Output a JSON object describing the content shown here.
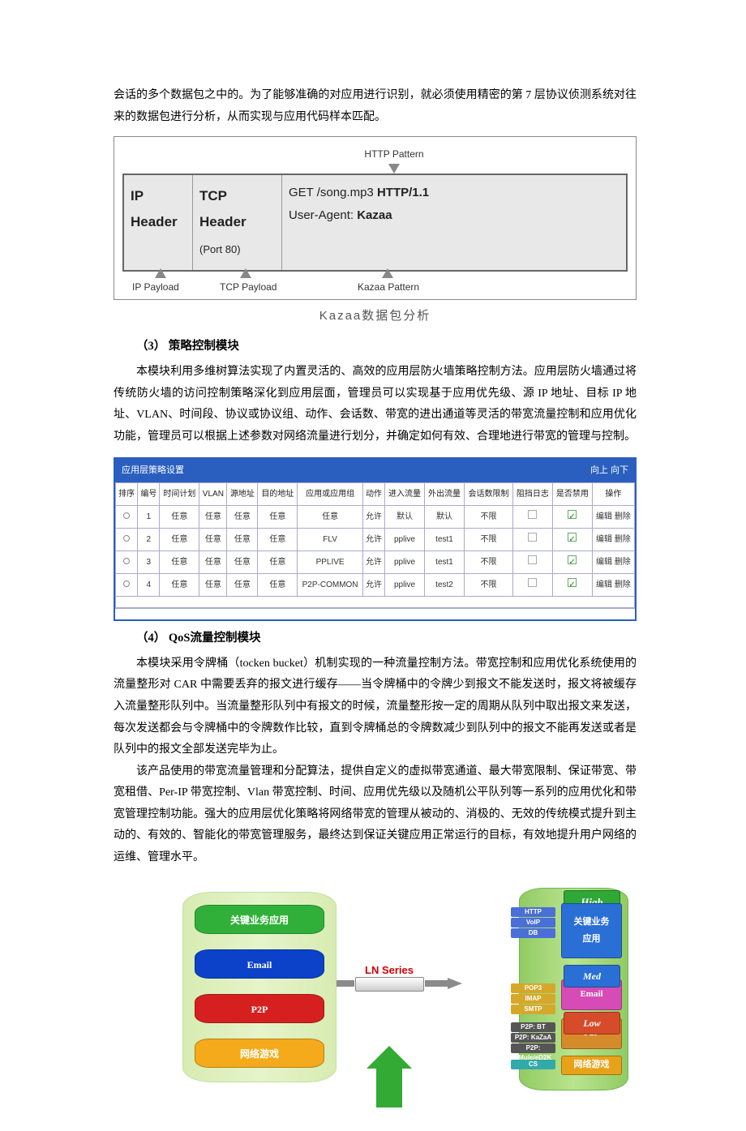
{
  "intro_para": "会话的多个数据包之中的。为了能够准确的对应用进行识别，就必须使用精密的第 7 层协议侦测系统对往来的数据包进行分析，从而实现与应用代码样本匹配。",
  "kazaa": {
    "top_label": "HTTP Pattern",
    "ip_header": "IP\nHeader",
    "tcp_header": "TCP\nHeader\n(Port 80)",
    "http_line1_a": "GET /song.mp3  ",
    "http_line1_b": "HTTP/1.1",
    "http_line2_a": "User-Agent: ",
    "http_line2_b": "Kazaa",
    "bl_ip": "IP Payload",
    "bl_tcp": "TCP Payload",
    "bl_kz": "Kazaa Pattern",
    "caption": "Kazaa数据包分析"
  },
  "sec3_head": "（3） 策略控制模块",
  "sec3_para": "本模块利用多维树算法实现了内置灵活的、高效的应用层防火墙策略控制方法。应用层防火墙通过将传统防火墙的访问控制策略深化到应用层面，管理员可以实现基于应用优先级、源 IP 地址、目标 IP 地址、VLAN、时间段、协议或协议组、动作、会话数、带宽的进出通道等灵活的带宽流量控制和应用优化功能，管理员可以根据上述参数对网络流量进行划分，并确定如何有效、合理地进行带宽的管理与控制。",
  "policy": {
    "title": "应用层策略设置",
    "nav": "向上  向下",
    "columns": [
      "排序",
      "编号",
      "时间计划",
      "VLAN",
      "源地址",
      "目的地址",
      "应用或应用组",
      "动作",
      "进入流量",
      "外出流量",
      "会话数限制",
      "阻挡日志",
      "是否禁用",
      "操作"
    ],
    "rows": [
      {
        "id": "1",
        "plan": "任意",
        "vlan": "任意",
        "src": "任意",
        "dst": "任意",
        "app": "任意",
        "act": "允许",
        "in": "默认",
        "out": "默认",
        "sess": "不限",
        "log": false,
        "dis": true,
        "op": "编辑 删除"
      },
      {
        "id": "2",
        "plan": "任意",
        "vlan": "任意",
        "src": "任意",
        "dst": "任意",
        "app": "FLV",
        "act": "允许",
        "in": "pplive",
        "out": "test1",
        "sess": "不限",
        "log": false,
        "dis": true,
        "op": "编辑 删除"
      },
      {
        "id": "3",
        "plan": "任意",
        "vlan": "任意",
        "src": "任意",
        "dst": "任意",
        "app": "PPLIVE",
        "act": "允许",
        "in": "pplive",
        "out": "test1",
        "sess": "不限",
        "log": false,
        "dis": true,
        "op": "编辑 删除"
      },
      {
        "id": "4",
        "plan": "任意",
        "vlan": "任意",
        "src": "任意",
        "dst": "任意",
        "app": "P2P-COMMON",
        "act": "允许",
        "in": "pplive",
        "out": "test2",
        "sess": "不限",
        "log": false,
        "dis": true,
        "op": "编辑 删除"
      }
    ]
  },
  "sec4_head": "（4）  QoS流量控制模块",
  "sec4_p1": "本模块采用令牌桶（tocken bucket）机制实现的一种流量控制方法。带宽控制和应用优化系统使用的流量整形对 CAR 中需要丢弃的报文进行缓存——当令牌桶中的令牌少到报文不能发送时，报文将被缓存入流量整形队列中。当流量整形队列中有报文的时候，流量整形按一定的周期从队列中取出报文来发送，每次发送都会与令牌桶中的令牌数作比较，直到令牌桶总的令牌数减少到队列中的报文不能再发送或者是队列中的报文全部发送完毕为止。",
  "sec4_p2": "该产品使用的带宽流量管理和分配算法，提供自定义的虚拟带宽通道、最大带宽限制、保证带宽、带宽租借、Per-IP 带宽控制、Vlan 带宽控制、时间、应用优先级以及随机公平队列等一系列的应用优化和带宽管理控制功能。强大的应用层优化策略将网络带宽的管理从被动的、消极的、无效的传统模式提升到主动的、有效的、智能化的带宽管理服务，最终达到保证关键应用正常运行的目标，有效地提升用户网络的运维、管理水平。",
  "qos": {
    "left": [
      "关键业务应用",
      "Email",
      "P2P",
      "网络游戏"
    ],
    "left_colors": [
      "#2fa836",
      "#0b3fbf",
      "#cc1e1e",
      "#e8a21a"
    ],
    "ln_label": "LN Series",
    "right_prio": [
      {
        "label": "High",
        "color": "#2fa836"
      },
      {
        "label": "Med",
        "color": "#2a6fd6"
      },
      {
        "label": "Low",
        "color": "#d64b2a"
      }
    ],
    "right_apps": [
      {
        "label": "关键业务\n应用",
        "protos": [
          "HTTP",
          "VoIP",
          "DB"
        ],
        "color": "#2a6fd6"
      },
      {
        "label": "Email",
        "protos": [
          "POP3",
          "IMAP",
          "SMTP"
        ],
        "color": "#d64bb6"
      },
      {
        "label": "P2P",
        "protos": [
          "P2P: BT",
          "P2P: KaZaA",
          "P2P: eMule/eD2K"
        ],
        "color": "#d68b2a"
      },
      {
        "label": "网络游戏",
        "protos": [
          "CS"
        ],
        "color": "#e8a21a"
      }
    ]
  }
}
